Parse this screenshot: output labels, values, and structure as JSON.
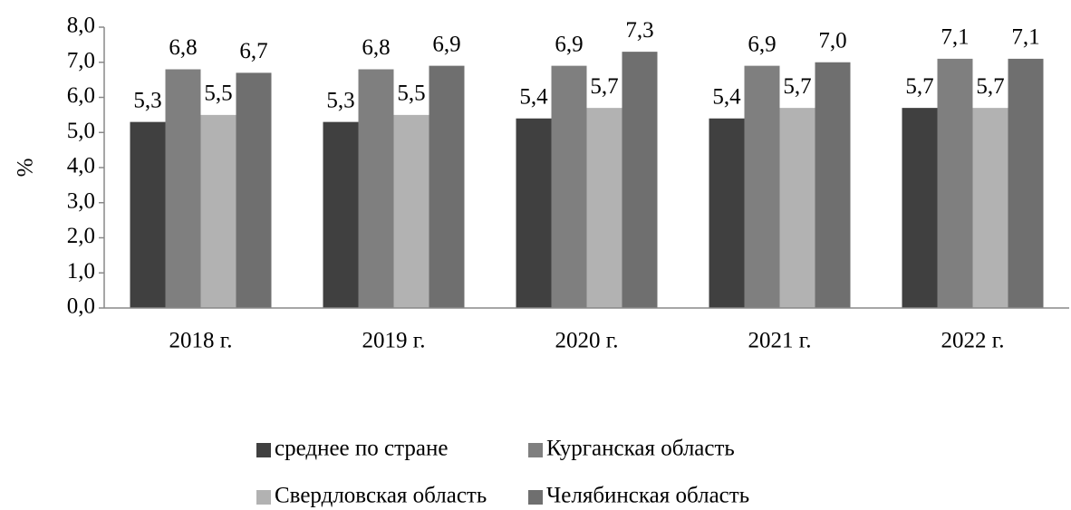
{
  "chart_data": {
    "type": "bar",
    "y_label": "%",
    "categories": [
      "2018 г.",
      "2019 г.",
      "2020 г.",
      "2021 г.",
      "2022 г."
    ],
    "series": [
      {
        "name": "среднее по стране",
        "color": "#404040",
        "values": [
          5.3,
          5.3,
          5.4,
          5.4,
          5.7
        ],
        "value_labels": [
          "5,3",
          "5,3",
          "5,4",
          "5,4",
          "5,7"
        ]
      },
      {
        "name": "Курганская область",
        "color": "#7f7f7f",
        "values": [
          6.8,
          6.8,
          6.9,
          6.9,
          7.1
        ],
        "value_labels": [
          "6,8",
          "6,8",
          "6,9",
          "6,9",
          "7,1"
        ]
      },
      {
        "name": "Свердловская область",
        "color": "#b2b2b2",
        "values": [
          5.5,
          5.5,
          5.7,
          5.7,
          5.7
        ],
        "value_labels": [
          "5,5",
          "5,5",
          "5,7",
          "5,7",
          "5,7"
        ]
      },
      {
        "name": "Челябинская область",
        "color": "#6f6f6f",
        "values": [
          6.7,
          6.9,
          7.3,
          7.0,
          7.1
        ],
        "value_labels": [
          "6,7",
          "6,9",
          "7,3",
          "7,0",
          "7,1"
        ]
      }
    ],
    "ylim": [
      0,
      8
    ],
    "yticks": [
      {
        "value": 0,
        "label": "0,0"
      },
      {
        "value": 1,
        "label": "1,0"
      },
      {
        "value": 2,
        "label": "2,0"
      },
      {
        "value": 3,
        "label": "3,0"
      },
      {
        "value": 4,
        "label": "4,0"
      },
      {
        "value": 5,
        "label": "5,0"
      },
      {
        "value": 6,
        "label": "6,0"
      },
      {
        "value": 7,
        "label": "7,0"
      },
      {
        "value": 8,
        "label": "8,0"
      }
    ],
    "grid": false,
    "legend": "bottom"
  }
}
